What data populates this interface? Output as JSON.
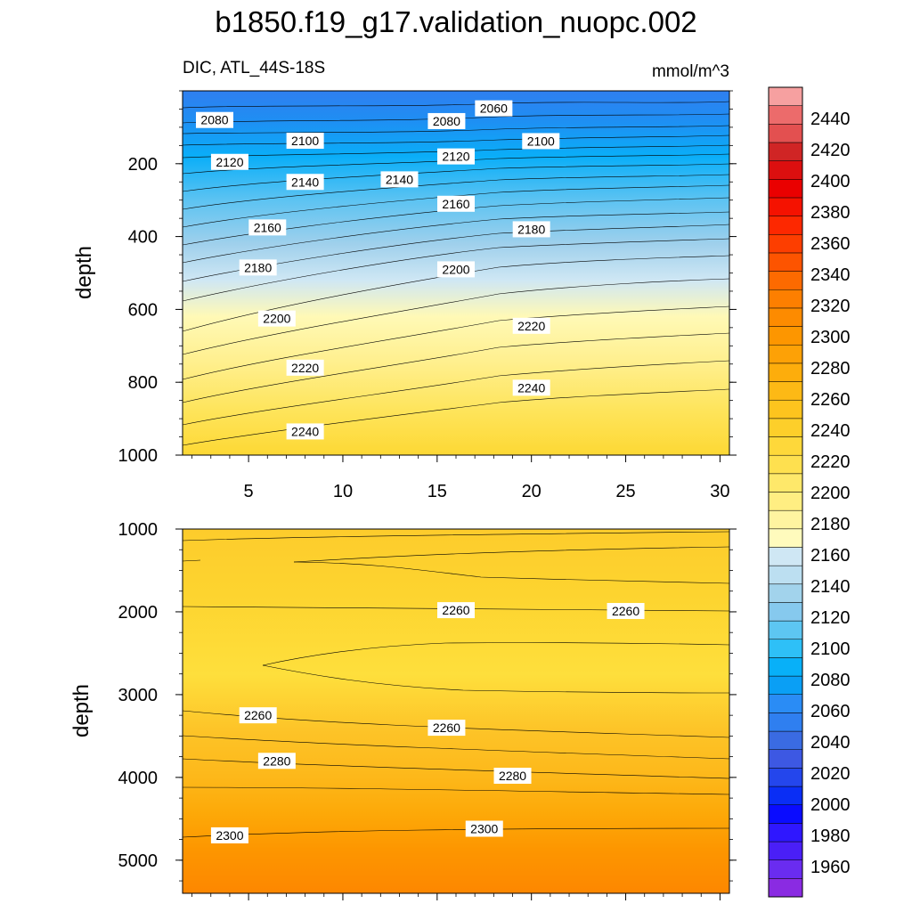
{
  "chart_data": {
    "type": "contour",
    "title": "b1850.f19_g17.validation_nuopc.002",
    "variable": "DIC",
    "region": "ATL_44S-18S",
    "subtitle_left": "DIC, ATL_44S-18S",
    "units": "mmol/m^3",
    "x_ticks": [
      5,
      10,
      15,
      20,
      25,
      30
    ],
    "xlim": [
      1.5,
      30.5
    ],
    "panels": [
      {
        "name": "upper",
        "ylabel": "depth",
        "ylim": [
          0,
          1000
        ],
        "y_ticks": [
          200,
          400,
          600,
          800,
          1000
        ],
        "contour_labels": [
          {
            "text": "2060",
            "x": 18.0,
            "y": 48
          },
          {
            "text": "2080",
            "x": 3.2,
            "y": 80
          },
          {
            "text": "2080",
            "x": 15.5,
            "y": 83
          },
          {
            "text": "2100",
            "x": 8.0,
            "y": 137
          },
          {
            "text": "2100",
            "x": 20.5,
            "y": 138
          },
          {
            "text": "2120",
            "x": 4.0,
            "y": 195
          },
          {
            "text": "2120",
            "x": 16.0,
            "y": 180
          },
          {
            "text": "2140",
            "x": 8.0,
            "y": 250
          },
          {
            "text": "2140",
            "x": 13.0,
            "y": 243
          },
          {
            "text": "2160",
            "x": 16.0,
            "y": 310
          },
          {
            "text": "2160",
            "x": 6.0,
            "y": 375
          },
          {
            "text": "2180",
            "x": 20.0,
            "y": 380
          },
          {
            "text": "2180",
            "x": 5.5,
            "y": 485
          },
          {
            "text": "2200",
            "x": 16.0,
            "y": 490
          },
          {
            "text": "2200",
            "x": 6.5,
            "y": 625
          },
          {
            "text": "2220",
            "x": 20.0,
            "y": 645
          },
          {
            "text": "2220",
            "x": 8.0,
            "y": 760
          },
          {
            "text": "2240",
            "x": 20.0,
            "y": 815
          },
          {
            "text": "2240",
            "x": 8.0,
            "y": 935
          }
        ]
      },
      {
        "name": "lower",
        "ylabel": "depth",
        "ylim": [
          1000,
          5400
        ],
        "y_ticks": [
          1000,
          2000,
          3000,
          4000,
          5000
        ],
        "contour_labels": [
          {
            "text": "2260",
            "x": 16.0,
            "y": 1980
          },
          {
            "text": "2260",
            "x": 25.0,
            "y": 1990
          },
          {
            "text": "2260",
            "x": 5.5,
            "y": 3250
          },
          {
            "text": "2260",
            "x": 15.5,
            "y": 3400
          },
          {
            "text": "2280",
            "x": 6.5,
            "y": 3800
          },
          {
            "text": "2280",
            "x": 19.0,
            "y": 3980
          },
          {
            "text": "2300",
            "x": 4.0,
            "y": 4700
          },
          {
            "text": "2300",
            "x": 17.5,
            "y": 4620
          }
        ]
      }
    ],
    "colorbar": {
      "levels": [
        1960,
        1980,
        2000,
        2020,
        2040,
        2060,
        2080,
        2100,
        2120,
        2140,
        2160,
        2180,
        2200,
        2220,
        2240,
        2260,
        2280,
        2300,
        2320,
        2340,
        2360,
        2380,
        2400,
        2420,
        2440
      ],
      "labels": [
        "1960",
        "1980",
        "2000",
        "2020",
        "2040",
        "2060",
        "2080",
        "2100",
        "2120",
        "2140",
        "2160",
        "2180",
        "2200",
        "2220",
        "2240",
        "2260",
        "2280",
        "2300",
        "2320",
        "2340",
        "2360",
        "2380",
        "2400",
        "2420",
        "2440"
      ],
      "colors": [
        "#8a2be2",
        "#6a2cf0",
        "#4a1ff7",
        "#2f17ff",
        "#0a0cff",
        "#0a2ef5",
        "#2446ec",
        "#3d58e3",
        "#3a6be2",
        "#2f7ff0",
        "#2a8cf5",
        "#0a9ff5",
        "#08b0f8",
        "#2ec0f7",
        "#5dc6f2",
        "#86c9ee",
        "#a2d3ec",
        "#bcdff1",
        "#cfe7f4",
        "#fffbbd",
        "#fff4a0",
        "#ffee82",
        "#fee86a",
        "#fee04f",
        "#fed83a",
        "#fdcf2a",
        "#fdc41e",
        "#fdb915",
        "#fdad0c",
        "#fda106",
        "#fd9600",
        "#fd8b00",
        "#fd7f00",
        "#fd6a00",
        "#fd5400",
        "#fd3e00",
        "#fd2800",
        "#f51200",
        "#ea0000",
        "#dc0f0f",
        "#d02525",
        "#e35050",
        "#ec6b6b",
        "#f6a0a0"
      ]
    }
  }
}
